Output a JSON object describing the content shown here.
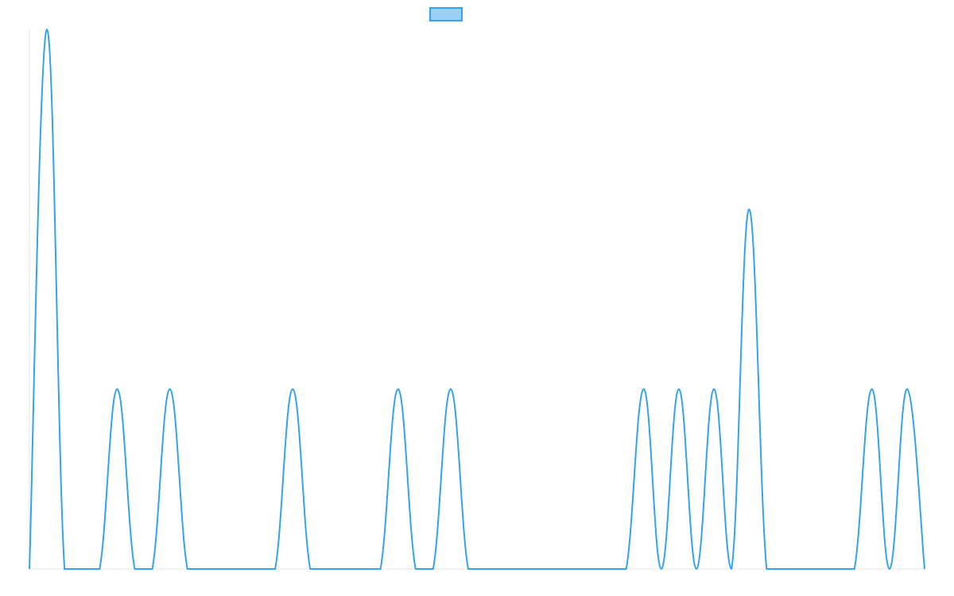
{
  "chart_data": {
    "type": "line",
    "title": "",
    "xlabel": "",
    "ylabel": "",
    "grid": false,
    "legend": {
      "position": "top",
      "label": ""
    },
    "ylim": [
      0,
      3
    ],
    "x": [
      0,
      1,
      2,
      3,
      4,
      5,
      6,
      7,
      8,
      9,
      10,
      11,
      12,
      13,
      14,
      15,
      16,
      17,
      18,
      19,
      20,
      21,
      22,
      23,
      24,
      25,
      26,
      27,
      28,
      29,
      30,
      31,
      32,
      33,
      34,
      35,
      36,
      37,
      38,
      39,
      40,
      41,
      42,
      43,
      44,
      45,
      46,
      47,
      48,
      49,
      50,
      51
    ],
    "series": [
      {
        "name": "",
        "values": [
          0,
          3,
          0,
          0,
          0,
          1,
          0,
          0,
          1,
          0,
          0,
          0,
          0,
          0,
          0,
          1,
          0,
          0,
          0,
          0,
          0,
          1,
          0,
          0,
          1,
          0,
          0,
          0,
          0,
          0,
          0,
          0,
          0,
          0,
          0,
          1,
          0,
          1,
          0,
          1,
          0,
          2,
          0,
          0,
          0,
          0,
          0,
          0,
          1,
          0,
          1,
          0
        ]
      }
    ],
    "colors": {
      "line": "#36a2eb",
      "fill": "#9ad0f5",
      "axis": "#e5e5e5"
    }
  }
}
